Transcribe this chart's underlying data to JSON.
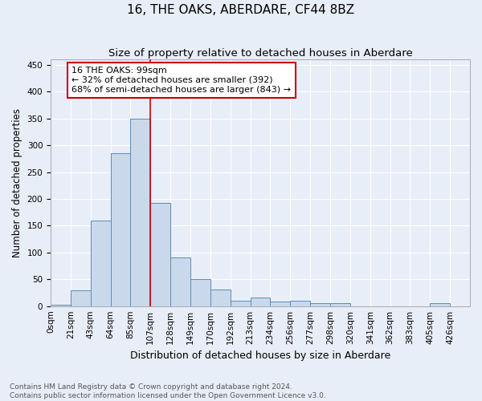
{
  "title": "16, THE OAKS, ABERDARE, CF44 8BZ",
  "subtitle": "Size of property relative to detached houses in Aberdare",
  "xlabel": "Distribution of detached houses by size in Aberdare",
  "ylabel": "Number of detached properties",
  "footer_line1": "Contains HM Land Registry data © Crown copyright and database right 2024.",
  "footer_line2": "Contains public sector information licensed under the Open Government Licence v3.0.",
  "bar_labels": [
    "0sqm",
    "21sqm",
    "43sqm",
    "64sqm",
    "85sqm",
    "107sqm",
    "128sqm",
    "149sqm",
    "170sqm",
    "192sqm",
    "213sqm",
    "234sqm",
    "256sqm",
    "277sqm",
    "298sqm",
    "320sqm",
    "341sqm",
    "362sqm",
    "383sqm",
    "405sqm",
    "426sqm"
  ],
  "bar_values": [
    2,
    30,
    160,
    285,
    350,
    192,
    91,
    50,
    31,
    10,
    16,
    8,
    10,
    5,
    5,
    0,
    0,
    0,
    0,
    5,
    0
  ],
  "bar_color": "#c9d9eb",
  "bar_edge_color": "#5b8db8",
  "annotation_text": "16 THE OAKS: 99sqm\n← 32% of detached houses are smaller (392)\n68% of semi-detached houses are larger (843) →",
  "annotation_box_color": "#ffffff",
  "annotation_border_color": "#cc0000",
  "vline_color": "#cc0000",
  "vline_x": 5,
  "ylim": [
    0,
    460
  ],
  "background_color": "#e8eef7",
  "plot_background": "#e8eef7",
  "grid_color": "#ffffff",
  "title_fontsize": 11,
  "subtitle_fontsize": 9.5,
  "tick_fontsize": 7.5,
  "ylabel_fontsize": 8.5,
  "xlabel_fontsize": 9,
  "footer_fontsize": 6.5
}
